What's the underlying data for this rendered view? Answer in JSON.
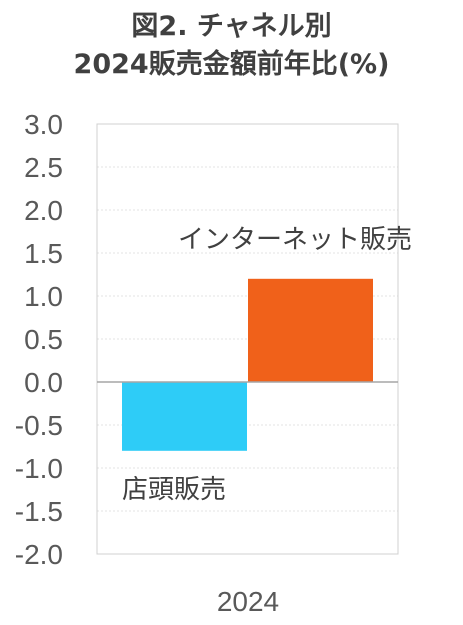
{
  "chart_data": {
    "type": "bar",
    "title_lines": [
      "図2. チャネル別",
      "2024販売金額前年比(%)"
    ],
    "categories": [
      "2024"
    ],
    "series": [
      {
        "name": "店頭販売",
        "values": [
          -0.8
        ],
        "color": "#2ECCF7"
      },
      {
        "name": "インターネット販売",
        "values": [
          1.2
        ],
        "color": "#F0611A"
      }
    ],
    "ylim": [
      -2.0,
      3.0
    ],
    "yticks": [
      "3.0",
      "2.5",
      "2.0",
      "1.5",
      "1.0",
      "0.5",
      "0.0",
      "-0.5",
      "-1.0",
      "-1.5",
      "-2.0"
    ],
    "ytick_values": [
      3.0,
      2.5,
      2.0,
      1.5,
      1.0,
      0.5,
      0.0,
      -0.5,
      -1.0,
      -1.5,
      -2.0
    ],
    "grid": true,
    "legend": "inline labels"
  }
}
